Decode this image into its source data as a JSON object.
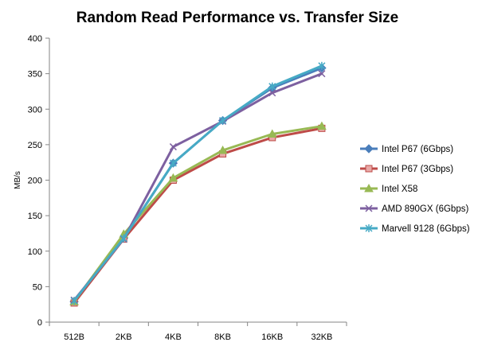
{
  "chart_data": {
    "type": "line",
    "title": "Random Read Performance vs. Transfer Size",
    "xlabel": "",
    "ylabel": "MB/s",
    "categories": [
      "512B",
      "2KB",
      "4KB",
      "8KB",
      "16KB",
      "32KB"
    ],
    "ylim": [
      0,
      400
    ],
    "yticks": [
      0,
      50,
      100,
      150,
      200,
      250,
      300,
      350,
      400
    ],
    "grid": false,
    "legend": "right",
    "series": [
      {
        "name": "Intel P67 (6Gbps)",
        "color": "#4a7ebb",
        "marker": "diamond",
        "values": [
          29,
          118,
          224,
          284,
          330,
          358
        ]
      },
      {
        "name": "Intel P67 (3Gbps)",
        "color": "#be4b48",
        "marker": "square",
        "values": [
          27,
          117,
          200,
          237,
          260,
          273
        ]
      },
      {
        "name": "Intel X58",
        "color": "#98b954",
        "marker": "triangle",
        "values": [
          29,
          124,
          203,
          242,
          265,
          276
        ]
      },
      {
        "name": "AMD 890GX (6Gbps)",
        "color": "#7d60a0",
        "marker": "x",
        "values": [
          31,
          117,
          247,
          283,
          323,
          350
        ]
      },
      {
        "name": "Marvell 9128 (6Gbps)",
        "color": "#46aac5",
        "marker": "star",
        "values": [
          30,
          118,
          224,
          284,
          332,
          361
        ]
      }
    ]
  }
}
